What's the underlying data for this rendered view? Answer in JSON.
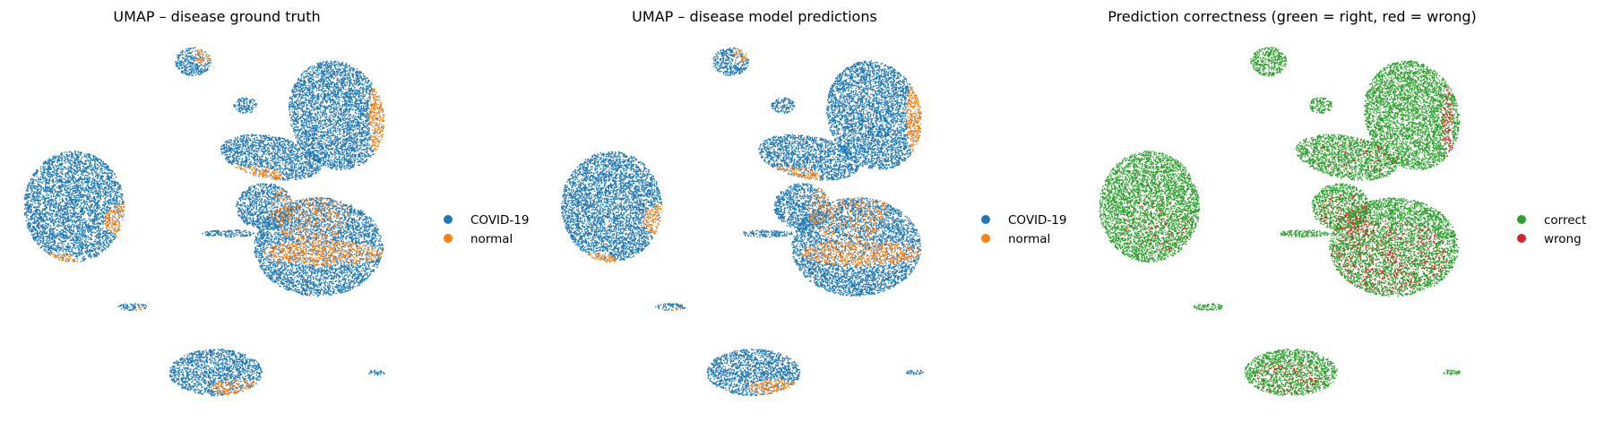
{
  "chart_data": [
    {
      "type": "scatter",
      "title": "UMAP – disease ground truth",
      "xlabel": "",
      "ylabel": "",
      "axes": "off",
      "legend_position": "right",
      "series": [
        {
          "name": "COVID-19",
          "color": "#1f77b4"
        },
        {
          "name": "normal",
          "color": "#ff7f0e"
        }
      ]
    },
    {
      "type": "scatter",
      "title": "UMAP – disease model predictions",
      "xlabel": "",
      "ylabel": "",
      "axes": "off",
      "legend_position": "right",
      "series": [
        {
          "name": "COVID-19",
          "color": "#1f77b4"
        },
        {
          "name": "normal",
          "color": "#ff7f0e"
        }
      ]
    },
    {
      "type": "scatter",
      "title": "Prediction correctness (green = right, red = wrong)",
      "xlabel": "",
      "ylabel": "",
      "axes": "off",
      "legend_position": "right",
      "series": [
        {
          "name": "correct",
          "color": "#2ca02c"
        },
        {
          "name": "wrong",
          "color": "#d62728"
        }
      ]
    }
  ]
}
